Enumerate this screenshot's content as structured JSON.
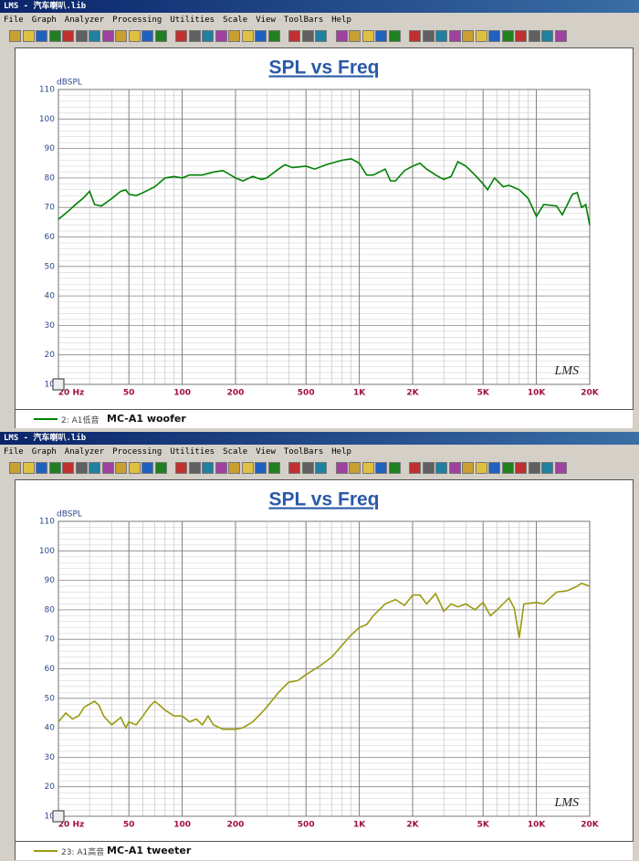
{
  "windows": [
    {
      "title": "LMS - 汽车喇叭.lib",
      "menu": [
        "File",
        "Graph",
        "Analyzer",
        "Processing",
        "Utilities",
        "Scale",
        "View",
        "ToolBars",
        "Help"
      ]
    },
    {
      "title": "LMS - 汽车喇叭.lib",
      "menu": [
        "File",
        "Graph",
        "Analyzer",
        "Processing",
        "Utilities",
        "Scale",
        "View",
        "ToolBars",
        "Help"
      ]
    }
  ],
  "chart_data": [
    {
      "type": "line",
      "title": "SPL vs Freq",
      "y_label": "dBSPL",
      "watermark": "LMS",
      "log_x": true,
      "grid": true,
      "minor_grid": true,
      "xlim": [
        20,
        20000
      ],
      "ylim": [
        10,
        110
      ],
      "xticks": [
        {
          "value": 20,
          "label": "20 Hz"
        },
        50,
        100,
        200,
        500,
        {
          "value": 1000,
          "label": "1K"
        },
        {
          "value": 2000,
          "label": "2K"
        },
        {
          "value": 5000,
          "label": "5K"
        },
        {
          "value": 10000,
          "label": "10K"
        },
        {
          "value": 20000,
          "label": "20K"
        }
      ],
      "yticks": [
        10,
        20,
        30,
        40,
        50,
        60,
        70,
        80,
        90,
        100,
        110
      ],
      "series": [
        {
          "name": "MC-A1 woofer",
          "trace_label": "2: A1低音",
          "color": "#008000",
          "x": [
            20,
            22,
            25,
            28,
            30,
            32,
            35,
            40,
            45,
            48,
            50,
            55,
            60,
            70,
            80,
            90,
            100,
            110,
            130,
            150,
            170,
            200,
            220,
            250,
            280,
            300,
            350,
            380,
            420,
            500,
            560,
            650,
            800,
            900,
            1000,
            1100,
            1200,
            1400,
            1500,
            1600,
            1800,
            2000,
            2200,
            2400,
            2700,
            3000,
            3300,
            3600,
            4000,
            4500,
            5000,
            5300,
            5800,
            6500,
            7000,
            8000,
            9000,
            10000,
            11000,
            13000,
            14000,
            16000,
            17000,
            18000,
            19000,
            20000
          ],
          "values": [
            66,
            68,
            71,
            73.5,
            75.5,
            71,
            70.5,
            73,
            75.5,
            76,
            74.5,
            74,
            75,
            77,
            80,
            80.5,
            80,
            81,
            81,
            82,
            82.5,
            80,
            79,
            80.5,
            79.5,
            80,
            83,
            84.5,
            83.5,
            84,
            83,
            84.5,
            86,
            86.5,
            85,
            81,
            81,
            83,
            79,
            79,
            82.5,
            84,
            85,
            83,
            81,
            79.5,
            80.5,
            85.5,
            84,
            81,
            78,
            76,
            80,
            77,
            77.5,
            76,
            73,
            67,
            71,
            70.5,
            67.5,
            74.5,
            75,
            70,
            71,
            64
          ]
        }
      ]
    },
    {
      "type": "line",
      "title": "SPL vs Freq",
      "y_label": "dBSPL",
      "watermark": "LMS",
      "log_x": true,
      "grid": true,
      "minor_grid": true,
      "xlim": [
        20,
        20000
      ],
      "ylim": [
        10,
        110
      ],
      "xticks": [
        {
          "value": 20,
          "label": "20 Hz"
        },
        50,
        100,
        200,
        500,
        {
          "value": 1000,
          "label": "1K"
        },
        {
          "value": 2000,
          "label": "2K"
        },
        {
          "value": 5000,
          "label": "5K"
        },
        {
          "value": 10000,
          "label": "10K"
        },
        {
          "value": 20000,
          "label": "20K"
        }
      ],
      "yticks": [
        10,
        20,
        30,
        40,
        50,
        60,
        70,
        80,
        90,
        100,
        110
      ],
      "series": [
        {
          "name": "MC-A1 tweeter",
          "trace_label": "23: A1高音",
          "color": "#9a9a10",
          "x": [
            20,
            22,
            24,
            26,
            28,
            32,
            34,
            36,
            40,
            45,
            48,
            50,
            55,
            60,
            65,
            70,
            75,
            80,
            90,
            100,
            110,
            120,
            130,
            140,
            150,
            170,
            200,
            220,
            250,
            280,
            300,
            350,
            400,
            450,
            500,
            600,
            700,
            800,
            900,
            1000,
            1100,
            1200,
            1400,
            1600,
            1800,
            2000,
            2200,
            2400,
            2700,
            3000,
            3300,
            3600,
            4000,
            4500,
            5000,
            5500,
            6000,
            7000,
            7500,
            8000,
            8500,
            10000,
            11000,
            13000,
            15000,
            17000,
            18000,
            20000
          ],
          "values": [
            42,
            45,
            43,
            44,
            47,
            49,
            47.5,
            44,
            41,
            43.5,
            40,
            42,
            41,
            44,
            47,
            49,
            47.5,
            46,
            44,
            44,
            42,
            43,
            41,
            44,
            41,
            39.5,
            39.5,
            40,
            42,
            45,
            47,
            52,
            55.5,
            56,
            58,
            61,
            64,
            68,
            71.5,
            74,
            75,
            78,
            82,
            83.5,
            81.5,
            85,
            85,
            82,
            85.5,
            79.5,
            82,
            81,
            82,
            80,
            82.5,
            78,
            80,
            84,
            80.5,
            70.5,
            82,
            82.5,
            82,
            86,
            86.5,
            88,
            89,
            88
          ]
        }
      ]
    }
  ]
}
